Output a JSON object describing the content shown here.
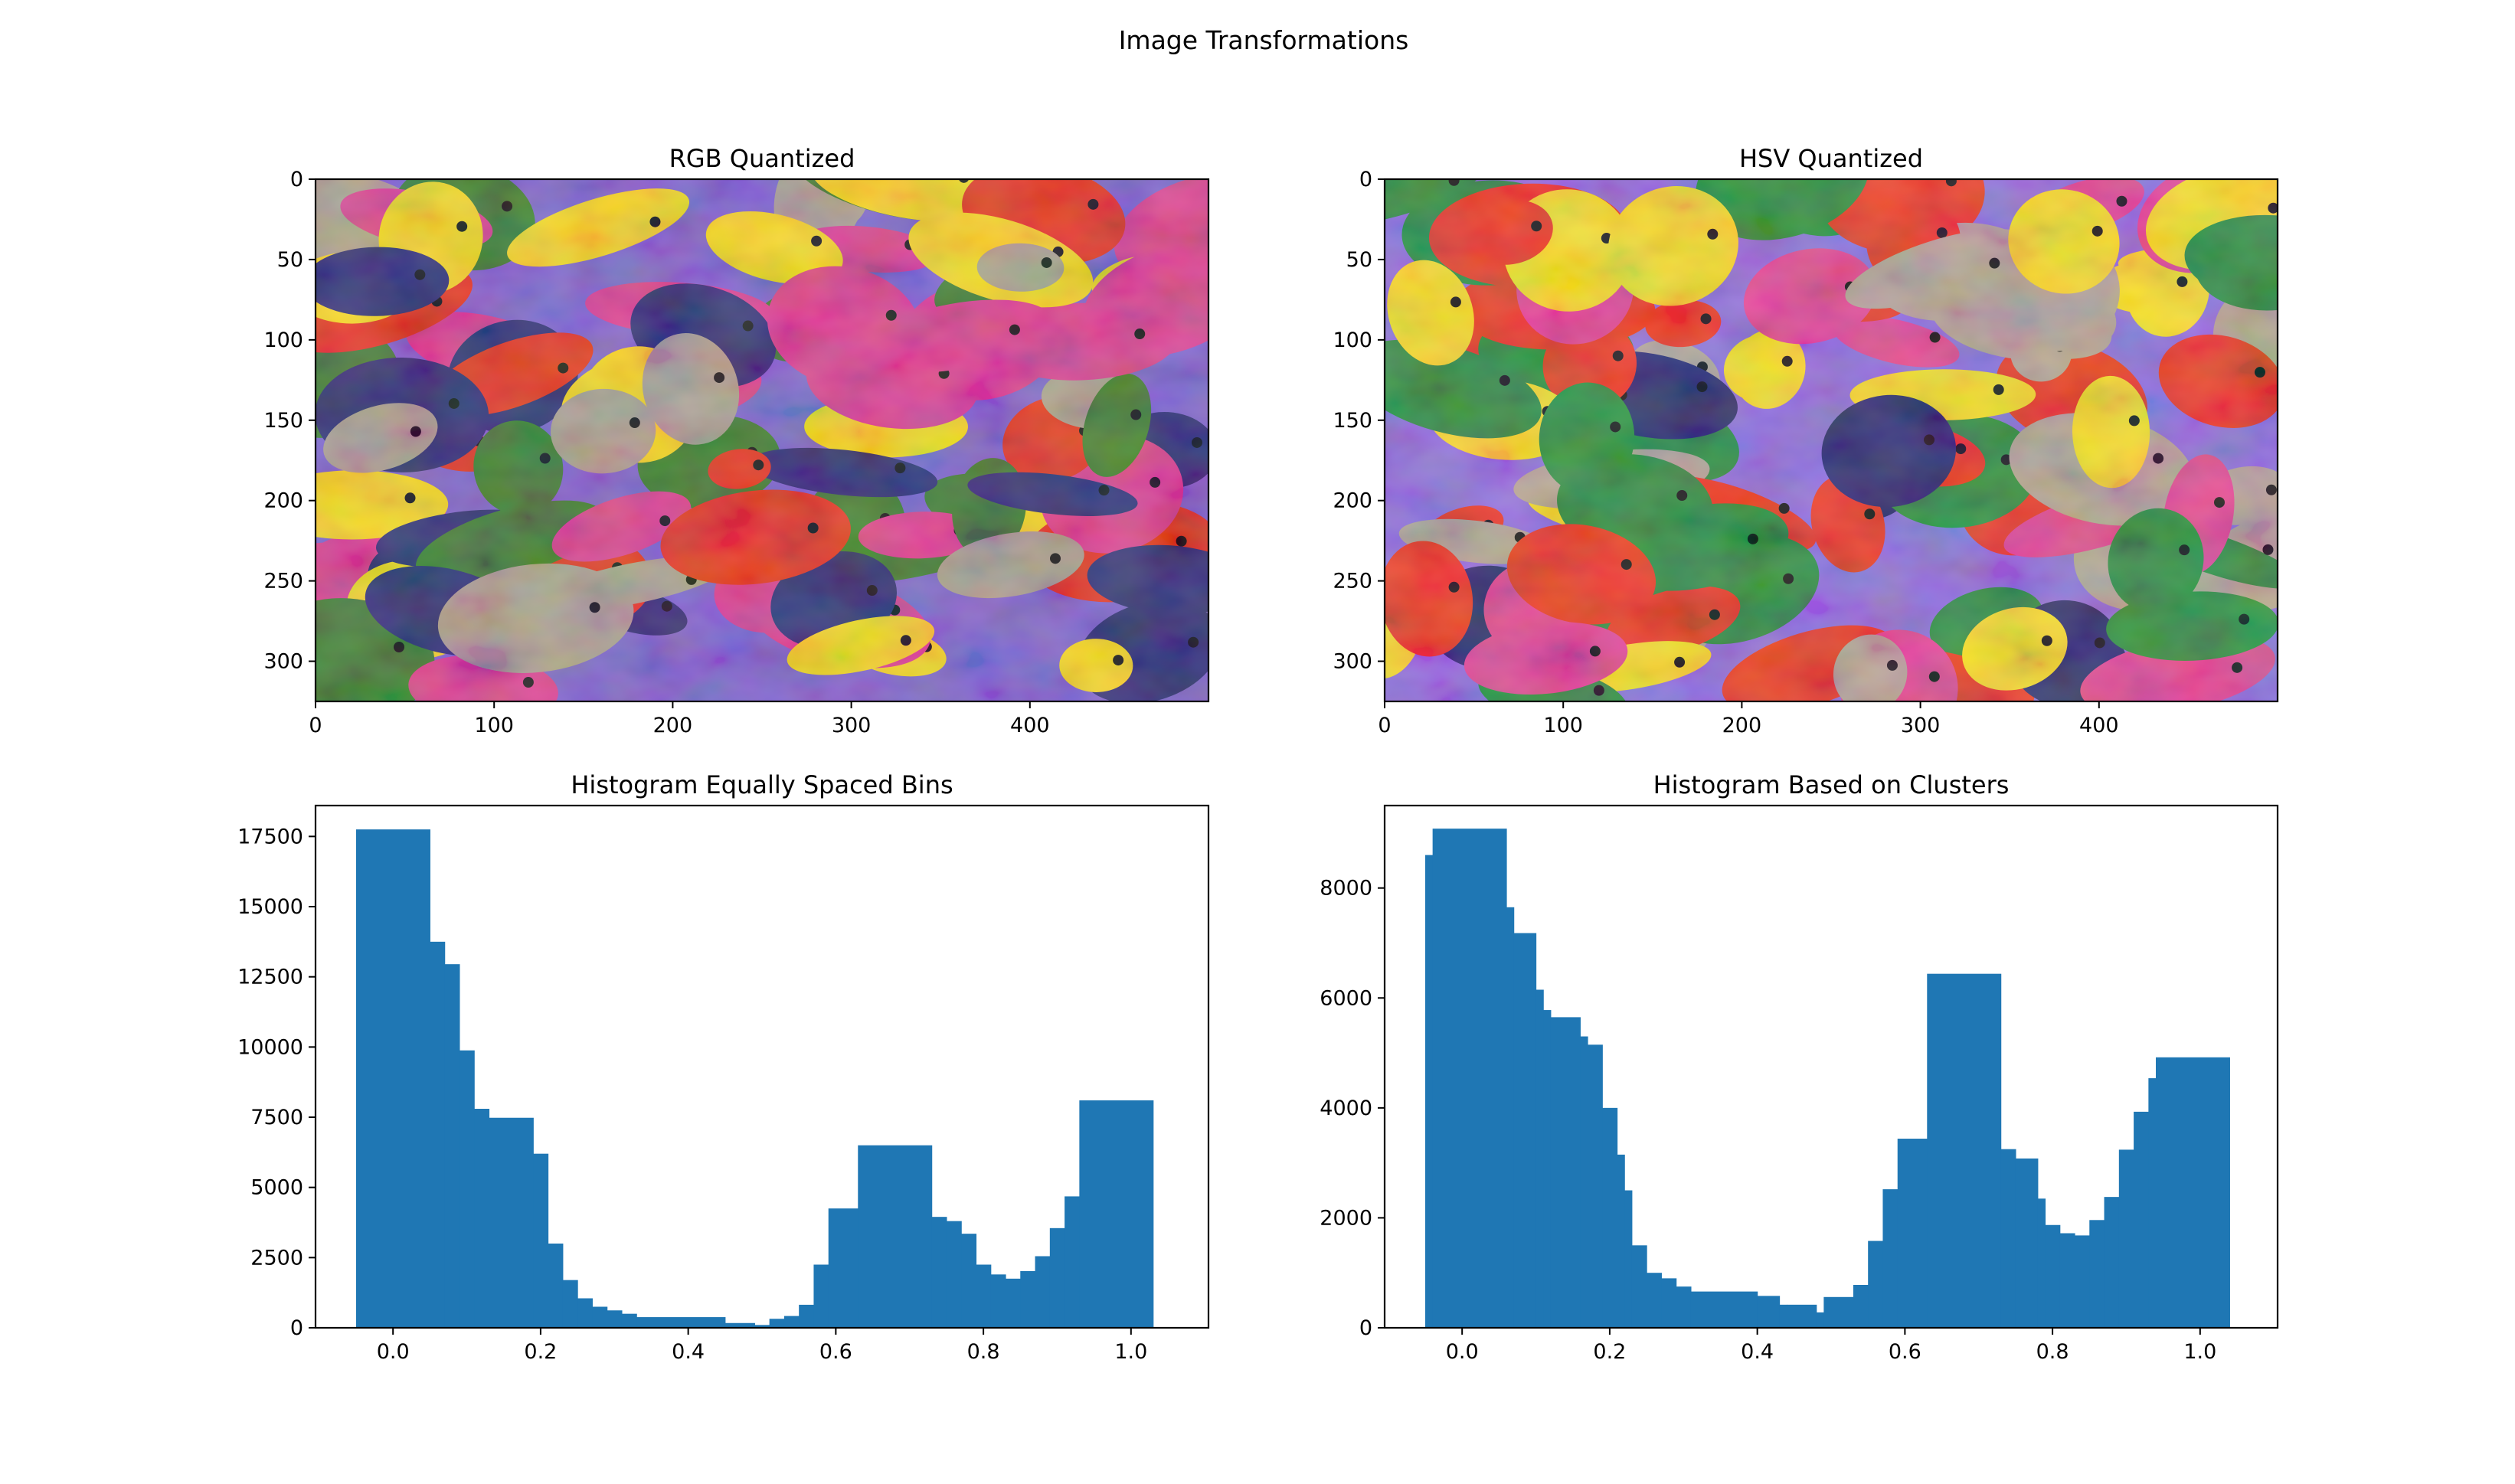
{
  "figure": {
    "suptitle": "Image Transformations"
  },
  "chart_data": [
    {
      "type": "image",
      "title": "RGB Quantized",
      "xlabel": "",
      "ylabel": "",
      "xlim": [
        0,
        500
      ],
      "ylim": [
        325,
        0
      ],
      "xticks": [
        0,
        100,
        200,
        300,
        400
      ],
      "yticks": [
        0,
        50,
        100,
        150,
        200,
        250,
        300
      ],
      "image_description": "color-quantized photo of many tropical fish (red, yellow, purple, blue, pink)",
      "colors": [
        "#7a5ec8",
        "#e2301a",
        "#f2d21a",
        "#2a2a6e",
        "#d83a8a",
        "#3a7a2a",
        "#a89a8a"
      ]
    },
    {
      "type": "image",
      "title": "HSV Quantized",
      "xlabel": "",
      "ylabel": "",
      "xlim": [
        0,
        500
      ],
      "ylim": [
        325,
        0
      ],
      "xticks": [
        0,
        100,
        200,
        300,
        400
      ],
      "yticks": [
        0,
        50,
        100,
        150,
        200,
        250,
        300
      ],
      "image_description": "color-quantized photo of many tropical fish (red, yellow, purple, blue, pink)",
      "colors": [
        "#8a6ad8",
        "#e8341c",
        "#f4d820",
        "#26286a",
        "#e0408e",
        "#2a8a3a",
        "#b0a090"
      ]
    },
    {
      "type": "bar",
      "title": "Histogram Equally Spaced Bins",
      "xlabel": "",
      "ylabel": "",
      "xlim": [
        -0.105,
        1.105
      ],
      "ylim": [
        0,
        18600
      ],
      "xticks": [
        0.0,
        0.2,
        0.4,
        0.6,
        0.8,
        1.0
      ],
      "xtick_labels": [
        "0.0",
        "0.2",
        "0.4",
        "0.6",
        "0.8",
        "1.0"
      ],
      "yticks": [
        0,
        2500,
        5000,
        7500,
        10000,
        12500,
        15000,
        17500
      ],
      "ytick_labels": [
        "0",
        "2500",
        "5000",
        "7500",
        "10000",
        "12500",
        "15000",
        "17500"
      ],
      "color": "#1f77b4",
      "bins": [
        {
          "x0": -0.05,
          "x1": 0.05,
          "value": 17750
        },
        {
          "x0": 0.05,
          "x1": 0.07,
          "value": 13750
        },
        {
          "x0": 0.07,
          "x1": 0.09,
          "value": 12950
        },
        {
          "x0": 0.09,
          "x1": 0.11,
          "value": 9880
        },
        {
          "x0": 0.11,
          "x1": 0.13,
          "value": 7800
        },
        {
          "x0": 0.13,
          "x1": 0.19,
          "value": 7480
        },
        {
          "x0": 0.19,
          "x1": 0.21,
          "value": 6200
        },
        {
          "x0": 0.21,
          "x1": 0.23,
          "value": 3000
        },
        {
          "x0": 0.23,
          "x1": 0.25,
          "value": 1700
        },
        {
          "x0": 0.25,
          "x1": 0.27,
          "value": 1050
        },
        {
          "x0": 0.27,
          "x1": 0.29,
          "value": 750
        },
        {
          "x0": 0.29,
          "x1": 0.31,
          "value": 620
        },
        {
          "x0": 0.31,
          "x1": 0.33,
          "value": 500
        },
        {
          "x0": 0.33,
          "x1": 0.45,
          "value": 380
        },
        {
          "x0": 0.45,
          "x1": 0.49,
          "value": 170
        },
        {
          "x0": 0.49,
          "x1": 0.51,
          "value": 100
        },
        {
          "x0": 0.51,
          "x1": 0.53,
          "value": 320
        },
        {
          "x0": 0.53,
          "x1": 0.55,
          "value": 420
        },
        {
          "x0": 0.55,
          "x1": 0.57,
          "value": 820
        },
        {
          "x0": 0.57,
          "x1": 0.59,
          "value": 2250
        },
        {
          "x0": 0.59,
          "x1": 0.63,
          "value": 4250
        },
        {
          "x0": 0.63,
          "x1": 0.73,
          "value": 6500
        },
        {
          "x0": 0.73,
          "x1": 0.75,
          "value": 3950
        },
        {
          "x0": 0.75,
          "x1": 0.77,
          "value": 3800
        },
        {
          "x0": 0.77,
          "x1": 0.79,
          "value": 3350
        },
        {
          "x0": 0.79,
          "x1": 0.81,
          "value": 2250
        },
        {
          "x0": 0.81,
          "x1": 0.83,
          "value": 1900
        },
        {
          "x0": 0.83,
          "x1": 0.85,
          "value": 1750
        },
        {
          "x0": 0.85,
          "x1": 0.87,
          "value": 2020
        },
        {
          "x0": 0.87,
          "x1": 0.89,
          "value": 2550
        },
        {
          "x0": 0.89,
          "x1": 0.91,
          "value": 3550
        },
        {
          "x0": 0.91,
          "x1": 0.93,
          "value": 4680
        },
        {
          "x0": 0.93,
          "x1": 1.03,
          "value": 8100
        }
      ]
    },
    {
      "type": "bar",
      "title": "Histogram Based on Clusters",
      "xlabel": "",
      "ylabel": "",
      "xlim": [
        -0.105,
        1.105
      ],
      "ylim": [
        0,
        9500
      ],
      "xticks": [
        0.0,
        0.2,
        0.4,
        0.6,
        0.8,
        1.0
      ],
      "xtick_labels": [
        "0.0",
        "0.2",
        "0.4",
        "0.6",
        "0.8",
        "1.0"
      ],
      "yticks": [
        0,
        2000,
        4000,
        6000,
        8000
      ],
      "ytick_labels": [
        "0",
        "2000",
        "4000",
        "6000",
        "8000"
      ],
      "color": "#1f77b4",
      "bins": [
        {
          "x0": -0.05,
          "x1": -0.04,
          "value": 8600
        },
        {
          "x0": -0.04,
          "x1": 0.06,
          "value": 9080
        },
        {
          "x0": 0.06,
          "x1": 0.07,
          "value": 7650
        },
        {
          "x0": 0.07,
          "x1": 0.1,
          "value": 7180
        },
        {
          "x0": 0.1,
          "x1": 0.11,
          "value": 6150
        },
        {
          "x0": 0.11,
          "x1": 0.12,
          "value": 5780
        },
        {
          "x0": 0.12,
          "x1": 0.16,
          "value": 5650
        },
        {
          "x0": 0.16,
          "x1": 0.17,
          "value": 5300
        },
        {
          "x0": 0.17,
          "x1": 0.19,
          "value": 5150
        },
        {
          "x0": 0.19,
          "x1": 0.21,
          "value": 4000
        },
        {
          "x0": 0.21,
          "x1": 0.22,
          "value": 3150
        },
        {
          "x0": 0.22,
          "x1": 0.23,
          "value": 2500
        },
        {
          "x0": 0.23,
          "x1": 0.25,
          "value": 1500
        },
        {
          "x0": 0.25,
          "x1": 0.27,
          "value": 1000
        },
        {
          "x0": 0.27,
          "x1": 0.29,
          "value": 900
        },
        {
          "x0": 0.29,
          "x1": 0.31,
          "value": 750
        },
        {
          "x0": 0.31,
          "x1": 0.4,
          "value": 660
        },
        {
          "x0": 0.4,
          "x1": 0.43,
          "value": 580
        },
        {
          "x0": 0.43,
          "x1": 0.44,
          "value": 420
        },
        {
          "x0": 0.44,
          "x1": 0.48,
          "value": 420
        },
        {
          "x0": 0.48,
          "x1": 0.49,
          "value": 280
        },
        {
          "x0": 0.49,
          "x1": 0.53,
          "value": 560
        },
        {
          "x0": 0.53,
          "x1": 0.55,
          "value": 780
        },
        {
          "x0": 0.55,
          "x1": 0.57,
          "value": 1580
        },
        {
          "x0": 0.57,
          "x1": 0.59,
          "value": 2520
        },
        {
          "x0": 0.59,
          "x1": 0.63,
          "value": 3440
        },
        {
          "x0": 0.63,
          "x1": 0.73,
          "value": 6440
        },
        {
          "x0": 0.73,
          "x1": 0.75,
          "value": 3250
        },
        {
          "x0": 0.75,
          "x1": 0.78,
          "value": 3080
        },
        {
          "x0": 0.78,
          "x1": 0.79,
          "value": 2350
        },
        {
          "x0": 0.79,
          "x1": 0.81,
          "value": 1870
        },
        {
          "x0": 0.81,
          "x1": 0.83,
          "value": 1720
        },
        {
          "x0": 0.83,
          "x1": 0.85,
          "value": 1680
        },
        {
          "x0": 0.85,
          "x1": 0.87,
          "value": 1960
        },
        {
          "x0": 0.87,
          "x1": 0.89,
          "value": 2380
        },
        {
          "x0": 0.89,
          "x1": 0.91,
          "value": 3240
        },
        {
          "x0": 0.91,
          "x1": 0.93,
          "value": 3930
        },
        {
          "x0": 0.93,
          "x1": 0.94,
          "value": 4540
        },
        {
          "x0": 0.94,
          "x1": 1.04,
          "value": 4920
        }
      ]
    }
  ]
}
